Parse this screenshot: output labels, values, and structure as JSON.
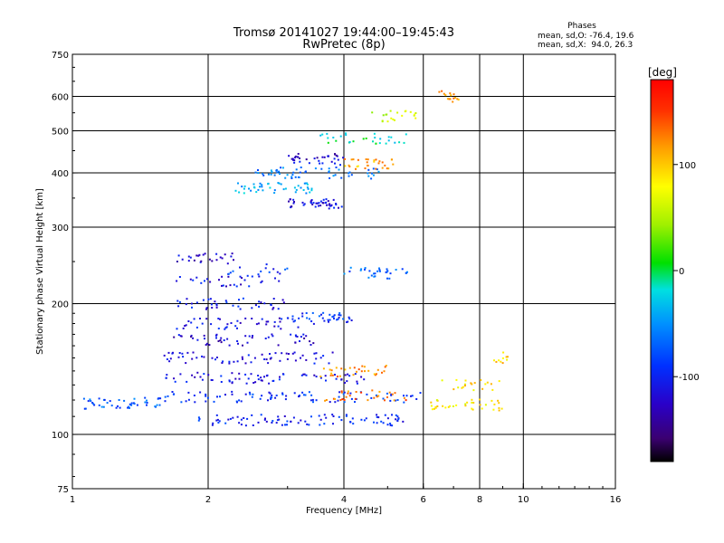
{
  "chart_data": {
    "type": "scatter",
    "title": "Tromsø 20141027 19:44:00–19:45:43",
    "subtitle": "RwPretec (8p)",
    "xlabel": "Frequency [MHz]",
    "ylabel": "Stationary phase Virtual Height [km]",
    "x_scale": "log",
    "y_scale": "log",
    "xlim": [
      1,
      16
    ],
    "ylim": [
      75,
      750
    ],
    "x_ticks": [
      1,
      2,
      4,
      6,
      8,
      10,
      16
    ],
    "x_tick_labels": [
      "1",
      "2",
      "4",
      "6",
      "8",
      "10",
      "16"
    ],
    "y_ticks": [
      75,
      100,
      200,
      300,
      400,
      500,
      600,
      750
    ],
    "y_tick_labels": [
      "75",
      "100",
      "200",
      "300",
      "400",
      "500",
      "600",
      "750"
    ],
    "grid": true,
    "phases": {
      "heading": "Phases",
      "line_o": "mean, sd,O: -76.4, 19.6",
      "line_x": "mean, sd,X:  94.0, 26.3"
    },
    "colorbar": {
      "unit": "[deg]",
      "range": [
        -180,
        180
      ],
      "tick_values": [
        100,
        0,
        -100
      ],
      "tick_labels": [
        "100",
        "0",
        "-100"
      ],
      "colormap": "rainbow"
    },
    "traces": [
      {
        "x_range": [
          1.05,
          1.6
        ],
        "height": 118,
        "phase": -75,
        "n": 45
      },
      {
        "x_range": [
          1.6,
          6.0
        ],
        "height": 122,
        "phase": -90,
        "n": 90
      },
      {
        "x_range": [
          1.9,
          5.5
        ],
        "height": 108,
        "phase": -100,
        "n": 90
      },
      {
        "x_range": [
          1.6,
          4.5
        ],
        "height": 135,
        "phase": -110,
        "n": 70
      },
      {
        "x_range": [
          1.6,
          3.8
        ],
        "height": 150,
        "phase": -115,
        "n": 60
      },
      {
        "x_range": [
          1.65,
          3.5
        ],
        "height": 165,
        "phase": -120,
        "n": 50
      },
      {
        "x_range": [
          1.7,
          3.2
        ],
        "height": 180,
        "phase": -110,
        "n": 40
      },
      {
        "x_range": [
          1.7,
          3.0
        ],
        "height": 200,
        "phase": -105,
        "n": 40
      },
      {
        "x_range": [
          1.7,
          2.9
        ],
        "height": 225,
        "phase": -110,
        "n": 30
      },
      {
        "x_range": [
          1.65,
          2.3
        ],
        "height": 255,
        "phase": -120,
        "n": 25
      },
      {
        "x_range": [
          2.2,
          3.0
        ],
        "height": 240,
        "phase": -90,
        "n": 15
      },
      {
        "x_range": [
          4.0,
          6.0
        ],
        "height": 235,
        "phase": -70,
        "n": 30
      },
      {
        "x_range": [
          3.0,
          4.2
        ],
        "height": 185,
        "phase": -90,
        "n": 40
      },
      {
        "x_range": [
          3.5,
          5.0
        ],
        "height": 140,
        "phase": 120,
        "n": 30
      },
      {
        "x_range": [
          3.6,
          5.5
        ],
        "height": 123,
        "phase": 130,
        "n": 30
      },
      {
        "x_range": [
          6.2,
          9.0
        ],
        "height": 117,
        "phase": 85,
        "n": 35
      },
      {
        "x_range": [
          6.5,
          9.0
        ],
        "height": 130,
        "phase": 90,
        "n": 20
      },
      {
        "x_range": [
          8.6,
          9.3
        ],
        "height": 150,
        "phase": 95,
        "n": 10
      },
      {
        "x_range": [
          2.3,
          3.4
        ],
        "height": 370,
        "phase": -40,
        "n": 45
      },
      {
        "x_range": [
          2.4,
          4.8
        ],
        "height": 400,
        "phase": -60,
        "n": 55
      },
      {
        "x_range": [
          3.0,
          4.0
        ],
        "height": 340,
        "phase": -115,
        "n": 45
      },
      {
        "x_range": [
          3.0,
          4.0
        ],
        "height": 430,
        "phase": -120,
        "n": 35
      },
      {
        "x_range": [
          4.0,
          5.2
        ],
        "height": 420,
        "phase": 110,
        "n": 30
      },
      {
        "x_range": [
          3.5,
          5.5
        ],
        "height": 480,
        "phase": -10,
        "n": 30
      },
      {
        "x_range": [
          4.5,
          5.8
        ],
        "height": 540,
        "phase": 60,
        "n": 20
      },
      {
        "x_range": [
          6.5,
          7.2
        ],
        "height": 600,
        "phase": 120,
        "n": 15
      }
    ]
  }
}
